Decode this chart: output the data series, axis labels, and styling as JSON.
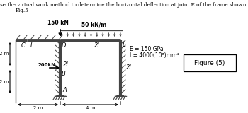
{
  "title_line1": "Use the virtual work method to determine the horizontal deflection at joint E of the frame shown in",
  "title_line2": "Fig.5",
  "load_vertical": "150 kN",
  "load_distributed": "50 kN/m",
  "load_horizontal": "200kN",
  "dim_left_top": "2 m",
  "dim_left_bot": "2 m",
  "dim_horiz_left": "2 m",
  "dim_horiz_right": "4 m",
  "label_C": "C",
  "label_I": "I",
  "label_D": "D",
  "label_2I_beam": "2I",
  "label_E": "E",
  "label_2I_col": "2I",
  "label_B": "B",
  "label_A": "A",
  "label_2I_right": "2I",
  "prop_E": "E = 150 GPa",
  "prop_I": "I = 4000(10⁶)mm⁴",
  "figure_label": "Figure (5)",
  "frame_color": "#444444",
  "bg_color": "#ffffff",
  "text_color": "#000000"
}
